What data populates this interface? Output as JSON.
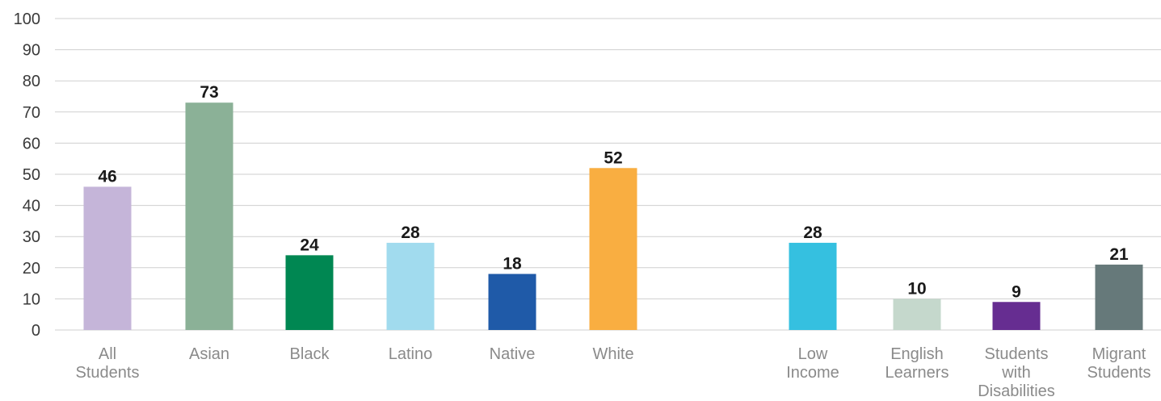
{
  "chart_data": {
    "type": "bar",
    "title": "",
    "xlabel": "",
    "ylabel": "",
    "ylim": [
      0,
      100
    ],
    "yticks": [
      0,
      10,
      20,
      30,
      40,
      50,
      60,
      70,
      80,
      90,
      100
    ],
    "grid": true,
    "categories": [
      "All Students",
      "Asian",
      "Black",
      "Latino",
      "Native",
      "White",
      "Low Income",
      "English Learners",
      "Students with Disabilities",
      "Migrant Students"
    ],
    "category_lines": [
      [
        "All",
        "Students"
      ],
      [
        "Asian"
      ],
      [
        "Black"
      ],
      [
        "Latino"
      ],
      [
        "Native"
      ],
      [
        "White"
      ],
      [
        "Low",
        "Income"
      ],
      [
        "English",
        "Learners"
      ],
      [
        "Students",
        "with",
        "Disabilities"
      ],
      [
        "Migrant",
        "Students"
      ]
    ],
    "values": [
      46,
      73,
      24,
      28,
      18,
      52,
      28,
      10,
      9,
      21
    ],
    "colors": [
      "#c5b5d9",
      "#8bb197",
      "#008752",
      "#a1dbee",
      "#1f5aa8",
      "#f9ae41",
      "#35c0e0",
      "#c5d8cc",
      "#662d91",
      "#66797a"
    ]
  }
}
